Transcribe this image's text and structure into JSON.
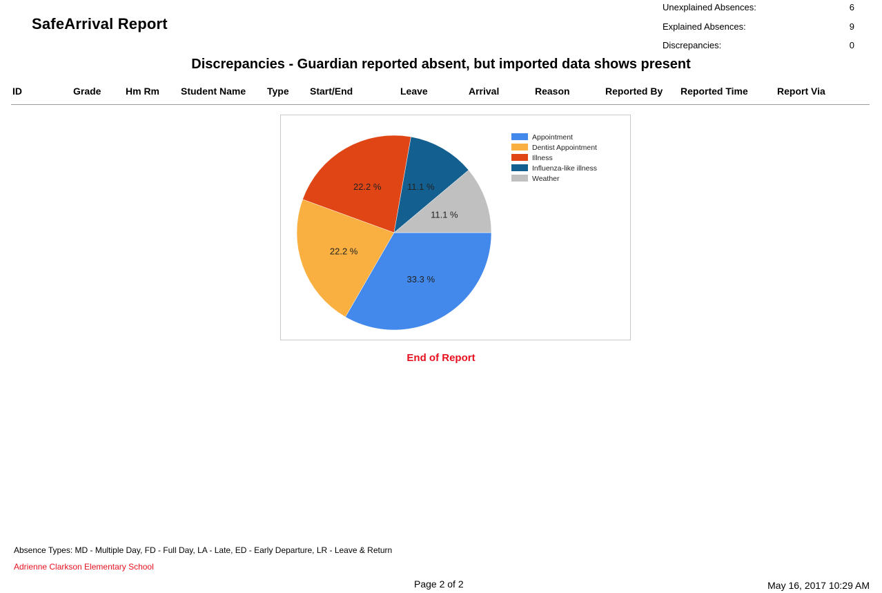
{
  "report": {
    "title": "SafeArrival Report",
    "section_title": "Discrepancies - Guardian reported absent, but imported data shows present",
    "end_text": "End of Report"
  },
  "summary": [
    {
      "label": "Unexplained Absences:",
      "value": "6"
    },
    {
      "label": "Explained Absences:",
      "value": "9"
    },
    {
      "label": "Discrepancies:",
      "value": "0"
    }
  ],
  "columns": [
    "ID",
    "Grade",
    "Hm Rm",
    "Student Name",
    "Type",
    "Start/End",
    "Leave",
    "Arrival",
    "Reason",
    "Reported By",
    "Reported Time",
    "Report Via"
  ],
  "chart_data": {
    "type": "pie",
    "legend_position": "top-right",
    "slices": [
      {
        "label": "Appointment",
        "value": 33.3,
        "display": "33.3 %",
        "color": "#4389ec"
      },
      {
        "label": "Dentist Appointment",
        "value": 22.2,
        "display": "22.2 %",
        "color": "#f9b040"
      },
      {
        "label": "Illness",
        "value": 22.2,
        "display": "22.2 %",
        "color": "#e04515"
      },
      {
        "label": "Influenza-like illness",
        "value": 11.1,
        "display": "11.1 %",
        "color": "#135f8f"
      },
      {
        "label": "Weather",
        "value": 11.1,
        "display": "11.1 %",
        "color": "#c0c0c0"
      }
    ]
  },
  "footer": {
    "absence_types": "Absence Types: MD - Multiple Day, FD - Full Day, LA - Late, ED - Early Departure, LR - Leave & Return",
    "school": "Adrienne Clarkson Elementary School",
    "page": "Page 2 of 2",
    "date": "May 16, 2017 10:29 AM"
  }
}
